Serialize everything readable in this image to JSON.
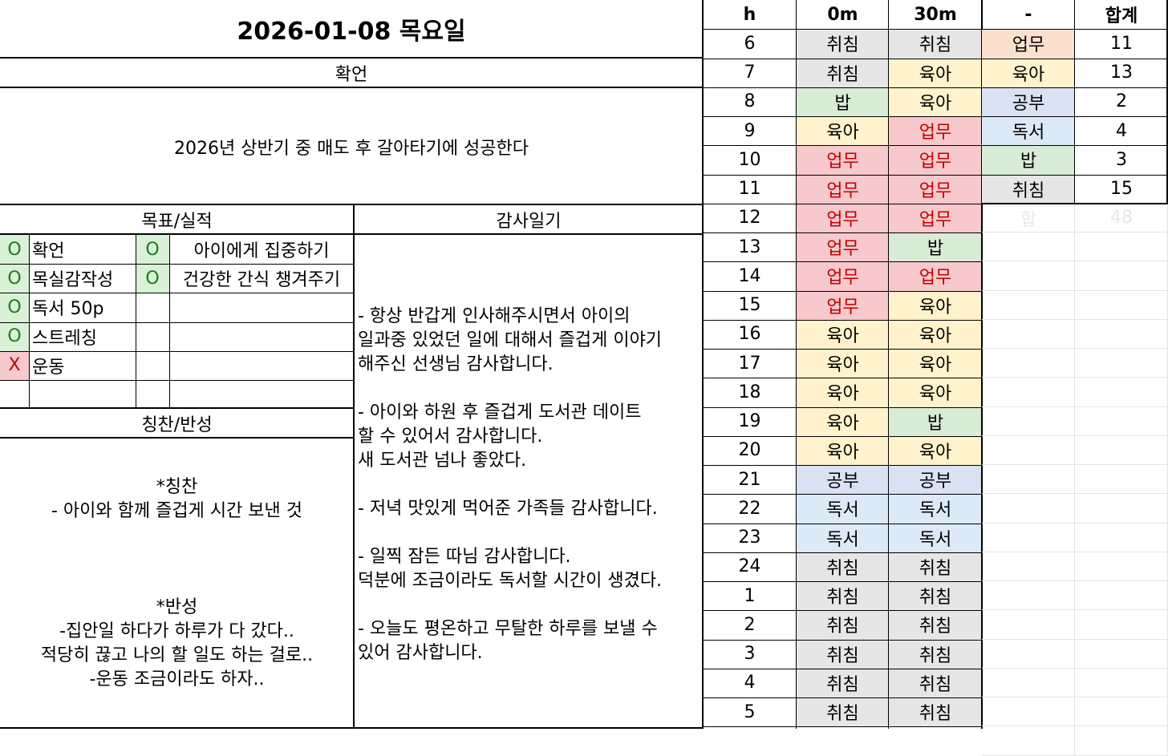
{
  "header": {
    "date_title": "2026-01-08 목요일"
  },
  "affirmation": {
    "header": "확언",
    "text": "2026년 상반기 중 매도 후 갈아타기에 성공한다"
  },
  "goals": {
    "header": "목표/실적",
    "rows": [
      {
        "mark1": "O",
        "label1": "확언",
        "mark2": "O",
        "label2": "아이에게 집중하기"
      },
      {
        "mark1": "O",
        "label1": "목실감작성",
        "mark2": "O",
        "label2": "건강한 간식 챙겨주기"
      },
      {
        "mark1": "O",
        "label1": "독서 50p",
        "mark2": "",
        "label2": ""
      },
      {
        "mark1": "O",
        "label1": "스트레칭",
        "mark2": "",
        "label2": ""
      },
      {
        "mark1": "X",
        "label1": "운동",
        "mark2": "",
        "label2": ""
      },
      {
        "mark1": "",
        "label1": "",
        "mark2": "",
        "label2": ""
      }
    ]
  },
  "praise": {
    "header": "칭찬/반성",
    "praise_title": "*칭찬",
    "praise_lines": [
      "- 아이와 함께 즐겁게 시간 보낸 것"
    ],
    "reflect_title": "*반성",
    "reflect_lines": [
      "-집안일 하다가 하루가 다 갔다..",
      "적당히 끊고 나의 할 일도 하는 걸로..",
      "-운동 조금이라도 하자.."
    ]
  },
  "gratitude": {
    "header": "감사일기",
    "text": "- 항상 반갑게 인사해주시면서 아이의\n일과중 있었던 일에 대해서 즐겁게 이야기\n해주신 선생님 감사합니다.\n\n- 아이와 하원 후 즐겁게 도서관 데이트\n할 수 있어서 감사합니다.\n새 도서관 넘나 좋았다.\n\n- 저녁 맛있게 먹어준 가족들 감사합니다.\n\n- 일찍 잠든 따님 감사합니다.\n덕분에 조금이라도 독서할 시간이 생겼다.\n\n- 오늘도 평온하고 무탈한 하루를 보낼 수\n있어 감사합니다."
  },
  "schedule": {
    "headers": [
      "h",
      "0m",
      "30m"
    ],
    "rows": [
      {
        "h": "6",
        "m0": "취침",
        "m30": "취침"
      },
      {
        "h": "7",
        "m0": "취침",
        "m30": "육아"
      },
      {
        "h": "8",
        "m0": "밥",
        "m30": "육아"
      },
      {
        "h": "9",
        "m0": "육아",
        "m30": "업무"
      },
      {
        "h": "10",
        "m0": "업무",
        "m30": "업무"
      },
      {
        "h": "11",
        "m0": "업무",
        "m30": "업무"
      },
      {
        "h": "12",
        "m0": "업무",
        "m30": "업무"
      },
      {
        "h": "13",
        "m0": "업무",
        "m30": "밥"
      },
      {
        "h": "14",
        "m0": "업무",
        "m30": "업무"
      },
      {
        "h": "15",
        "m0": "업무",
        "m30": "육아"
      },
      {
        "h": "16",
        "m0": "육아",
        "m30": "육아"
      },
      {
        "h": "17",
        "m0": "육아",
        "m30": "육아"
      },
      {
        "h": "18",
        "m0": "육아",
        "m30": "육아"
      },
      {
        "h": "19",
        "m0": "육아",
        "m30": "밥"
      },
      {
        "h": "20",
        "m0": "육아",
        "m30": "육아"
      },
      {
        "h": "21",
        "m0": "공부",
        "m30": "공부"
      },
      {
        "h": "22",
        "m0": "독서",
        "m30": "독서"
      },
      {
        "h": "23",
        "m0": "독서",
        "m30": "독서"
      },
      {
        "h": "24",
        "m0": "취침",
        "m30": "취침"
      },
      {
        "h": "1",
        "m0": "취침",
        "m30": "취침"
      },
      {
        "h": "2",
        "m0": "취침",
        "m30": "취침"
      },
      {
        "h": "3",
        "m0": "취침",
        "m30": "취침"
      },
      {
        "h": "4",
        "m0": "취침",
        "m30": "취침"
      },
      {
        "h": "5",
        "m0": "취침",
        "m30": "취침"
      }
    ]
  },
  "summary": {
    "headers": [
      "-",
      "합계"
    ],
    "rows": [
      {
        "category": "업무",
        "total": "11"
      },
      {
        "category": "육아",
        "total": "13"
      },
      {
        "category": "공부",
        "total": "2"
      },
      {
        "category": "독서",
        "total": "4"
      },
      {
        "category": "밥",
        "total": "3"
      },
      {
        "category": "취침",
        "total": "15"
      }
    ],
    "sum_label": "합",
    "sum_total": "48"
  },
  "colors": {
    "sleep": "#e6e6e6",
    "care": "#fff2cc",
    "work": "#f7c9cc",
    "work_text": "#c00000",
    "meal": "#d9ecd6",
    "study": "#d9e2f3",
    "reading": "#dce9f7",
    "mark_o": "#d9f1d6",
    "mark_x": "#f7c9cc"
  }
}
